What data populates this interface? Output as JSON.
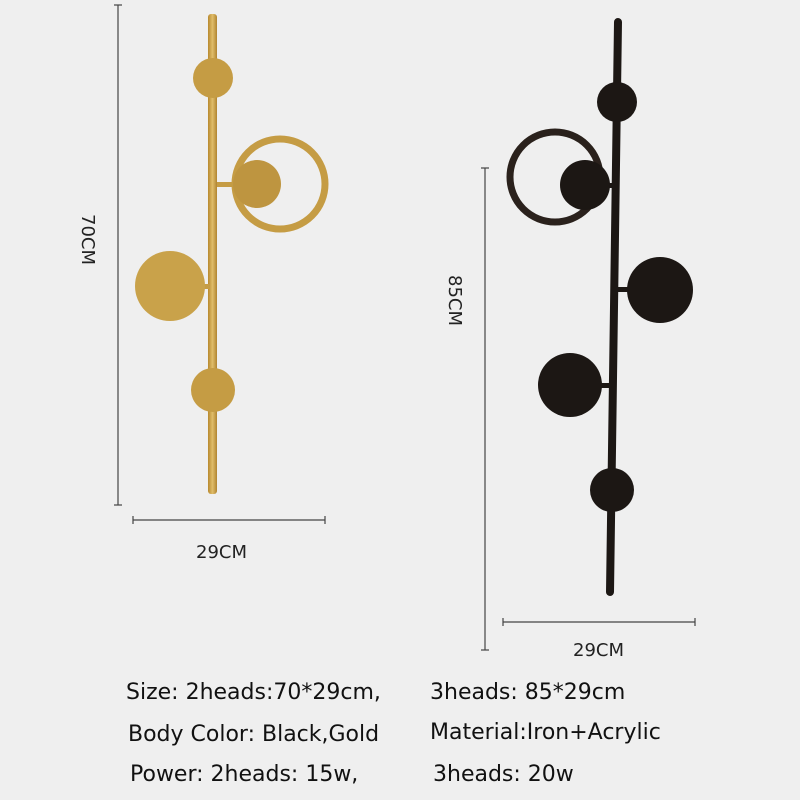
{
  "colors": {
    "gold": "#c9a24a",
    "black": "#1c1714",
    "background": "#efefef"
  },
  "gold_lamp": {
    "height_label": "70CM",
    "width_label": "29CM"
  },
  "black_lamp": {
    "height_label": "85CM",
    "width_label": "29CM"
  },
  "specs": {
    "size_2heads": "Size: 2heads:70*29cm,",
    "size_3heads": "3heads: 85*29cm",
    "body_color": "Body Color: Black,Gold",
    "material": "Material:Iron+Acrylic",
    "power_2heads": "Power: 2heads: 15w,",
    "power_3heads": "3heads: 20w"
  }
}
